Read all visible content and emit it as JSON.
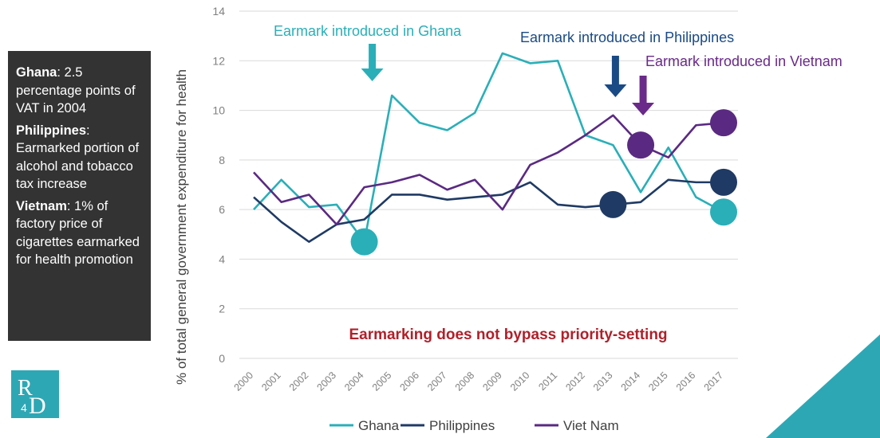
{
  "sidebar": {
    "notes": [
      {
        "country": "Ghana",
        "text": ": 2.5 percentage points of VAT in 2004"
      },
      {
        "country": "Philippines",
        "text": ": Earmarked portion of alcohol and tobacco tax increase"
      },
      {
        "country": "Vietnam",
        "text": ": 1% of factory price of cigarettes earmarked for health promotion"
      }
    ]
  },
  "logo": {
    "text": "R4D"
  },
  "colors": {
    "ghana": "#2aafb8",
    "philippines": "#1f3a64",
    "vietnam": "#5a2a82",
    "arrow_ghana": "#2aafb8",
    "arrow_philippines": "#1a4a86",
    "arrow_vietnam": "#6a2a8a",
    "callout": "#b0202a",
    "grid": "#d9d9d9",
    "sidebox": "#333333",
    "corner": "#2ea7b5"
  },
  "chart_data": {
    "type": "line",
    "title": "",
    "xlabel": "",
    "ylabel": "% of total general government expenditure for health",
    "ylim": [
      0,
      14
    ],
    "yticks": [
      0,
      2,
      4,
      6,
      8,
      10,
      12,
      14
    ],
    "grid": true,
    "legend_position": "bottom",
    "categories": [
      "2000",
      "2001",
      "2002",
      "2003",
      "2004",
      "2005",
      "2006",
      "2007",
      "2008",
      "2009",
      "2010",
      "2011",
      "2012",
      "2013",
      "2014",
      "2015",
      "2016",
      "2017"
    ],
    "series": [
      {
        "name": "Ghana",
        "key": "ghana",
        "values": [
          6.0,
          7.2,
          6.1,
          6.2,
          4.7,
          10.6,
          9.5,
          9.2,
          9.9,
          12.3,
          11.9,
          12.0,
          9.0,
          8.6,
          6.7,
          8.5,
          6.5,
          5.9
        ],
        "marker_index": [
          4,
          17
        ]
      },
      {
        "name": "Philippines",
        "key": "philippines",
        "values": [
          6.5,
          5.5,
          4.7,
          5.4,
          5.6,
          6.6,
          6.6,
          6.4,
          6.5,
          6.6,
          7.1,
          6.2,
          6.1,
          6.2,
          6.3,
          7.2,
          7.1,
          7.1
        ],
        "marker_index": [
          13,
          17
        ]
      },
      {
        "name": "Viet Nam",
        "key": "vietnam",
        "values": [
          7.5,
          6.3,
          6.6,
          5.4,
          6.9,
          7.1,
          7.4,
          6.8,
          7.2,
          6.0,
          7.8,
          8.3,
          9.0,
          9.8,
          8.6,
          8.1,
          9.4,
          9.5
        ],
        "marker_index": [
          14,
          17
        ]
      }
    ],
    "annotations": [
      {
        "text": "Earmark introduced in Ghana",
        "key": "ghana",
        "arrow_year_index": 4,
        "arrow_color_key": "arrow_ghana"
      },
      {
        "text": "Earmark introduced in Philippines",
        "key": "philippines",
        "arrow_year_index": 13,
        "arrow_color_key": "arrow_philippines"
      },
      {
        "text": "Earmark introduced in Vietnam",
        "key": "vietnam",
        "arrow_year_index": 14,
        "arrow_color_key": "arrow_vietnam"
      }
    ],
    "callout": "Earmarking does not bypass priority-setting"
  }
}
